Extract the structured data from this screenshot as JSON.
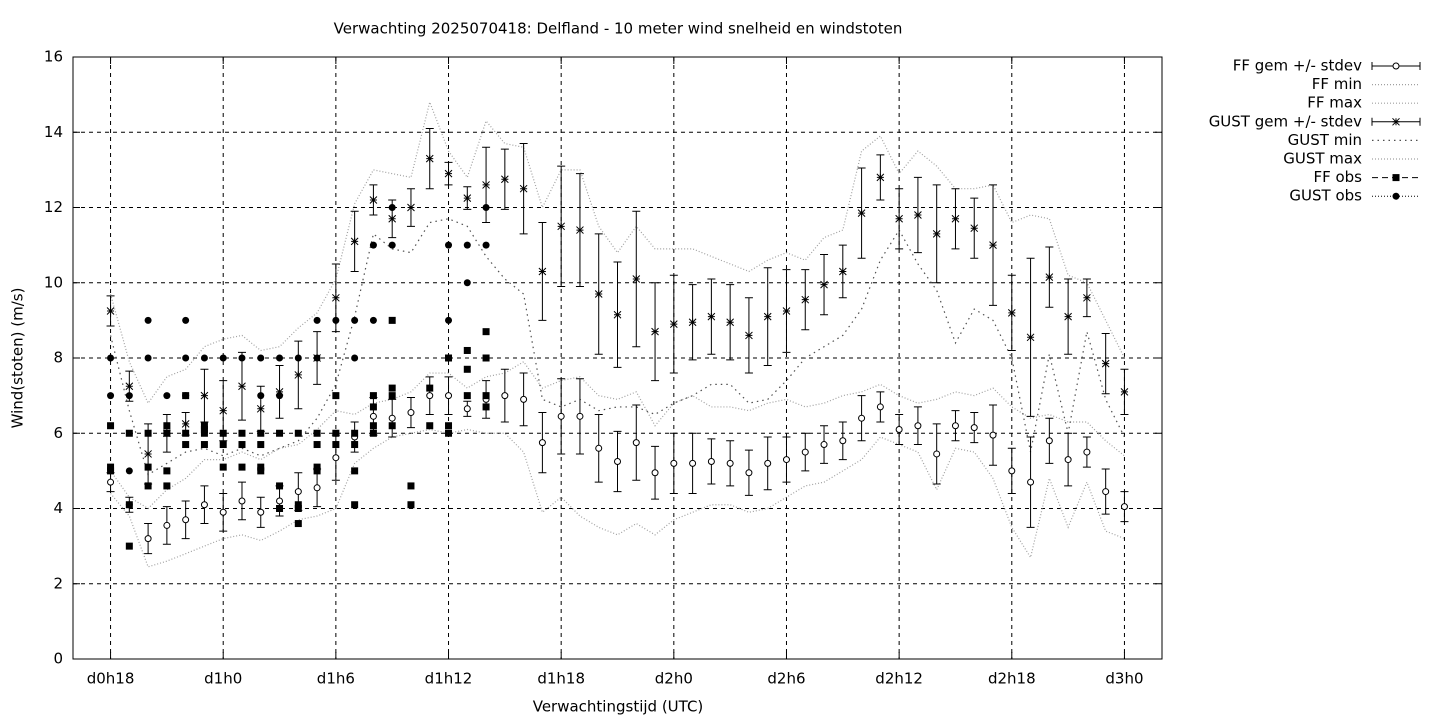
{
  "chart_data": {
    "type": "errorbar",
    "title": "Verwachting 2025070418: Delfland - 10 meter wind snelheid en windstoten",
    "xlabel": "Verwachtingstijd (UTC)",
    "ylabel": "Wind(stoten) (m/s)",
    "xlim": [
      16,
      74
    ],
    "xticks": [
      {
        "value": 18,
        "label": "d0h18"
      },
      {
        "value": 24,
        "label": "d1h0"
      },
      {
        "value": 30,
        "label": "d1h6"
      },
      {
        "value": 36,
        "label": "d1h12"
      },
      {
        "value": 42,
        "label": "d1h18"
      },
      {
        "value": 48,
        "label": "d2h0"
      },
      {
        "value": 54,
        "label": "d2h6"
      },
      {
        "value": 60,
        "label": "d2h12"
      },
      {
        "value": 66,
        "label": "d2h18"
      },
      {
        "value": 72,
        "label": "d3h0"
      }
    ],
    "ylim": [
      0,
      16
    ],
    "yticks": [
      0,
      2,
      4,
      6,
      8,
      10,
      12,
      14,
      16
    ],
    "grid": true,
    "legend": "outside-right",
    "x": [
      18,
      19,
      20,
      21,
      22,
      23,
      24,
      25,
      26,
      27,
      28,
      29,
      30,
      31,
      32,
      33,
      34,
      35,
      36,
      37,
      38,
      39,
      40,
      41,
      42,
      43,
      44,
      45,
      46,
      47,
      48,
      49,
      50,
      51,
      52,
      53,
      54,
      55,
      56,
      57,
      58,
      59,
      60,
      61,
      62,
      63,
      64,
      65,
      66,
      67,
      68,
      69,
      70,
      71,
      72
    ],
    "series": [
      {
        "name": "FF gem +/- stdev",
        "style": "errorbars",
        "marker": "open-circle",
        "color": "#000000",
        "values": [
          4.7,
          4.1,
          3.2,
          3.55,
          3.7,
          4.1,
          3.9,
          4.2,
          3.9,
          4.2,
          4.45,
          4.55,
          5.35,
          5.9,
          6.45,
          6.4,
          6.55,
          7.0,
          7.0,
          6.65,
          6.9,
          7.0,
          6.9,
          5.75,
          6.45,
          6.45,
          5.6,
          5.25,
          5.75,
          4.95,
          5.2,
          5.2,
          5.25,
          5.2,
          4.95,
          5.2,
          5.3,
          5.5,
          5.7,
          5.8,
          6.4,
          6.7,
          6.1,
          6.2,
          5.45,
          6.2,
          6.15,
          5.95,
          5.0,
          4.7,
          5.8,
          5.3,
          5.5,
          4.45,
          4.05
        ],
        "errors": [
          0.25,
          0.2,
          0.4,
          0.5,
          0.5,
          0.5,
          0.5,
          0.5,
          0.4,
          0.4,
          0.5,
          0.5,
          0.6,
          0.4,
          0.5,
          0.5,
          0.4,
          0.5,
          0.5,
          0.2,
          0.5,
          0.7,
          0.7,
          0.8,
          1.0,
          1.0,
          0.9,
          0.8,
          1.0,
          0.7,
          0.8,
          0.8,
          0.6,
          0.6,
          0.6,
          0.7,
          0.6,
          0.5,
          0.5,
          0.5,
          0.6,
          0.4,
          0.4,
          0.5,
          0.8,
          0.4,
          0.4,
          0.8,
          0.6,
          1.2,
          0.6,
          0.7,
          0.4,
          0.6,
          0.4
        ]
      },
      {
        "name": "FF min",
        "style": "line",
        "color": "#a0a0a0",
        "dash": "1 2",
        "values": [
          4.4,
          3.8,
          2.45,
          2.6,
          2.8,
          3.0,
          3.2,
          3.3,
          3.15,
          3.4,
          3.7,
          3.8,
          4.0,
          5.2,
          5.6,
          5.9,
          6.0,
          6.1,
          6.0,
          6.1,
          6.0,
          6.0,
          5.5,
          3.9,
          4.3,
          3.8,
          3.5,
          3.3,
          3.6,
          3.3,
          3.7,
          3.9,
          4.1,
          4.1,
          3.9,
          4.0,
          4.3,
          4.6,
          4.7,
          5.0,
          5.3,
          5.9,
          5.7,
          5.5,
          4.5,
          5.6,
          5.5,
          4.8,
          3.5,
          2.7,
          4.8,
          3.5,
          4.7,
          3.4,
          3.2
        ]
      },
      {
        "name": "FF max",
        "style": "line",
        "color": "#a0a0a0",
        "dash": "1 2",
        "values": [
          5.0,
          4.3,
          4.0,
          4.5,
          4.8,
          5.3,
          5.3,
          5.5,
          5.3,
          5.6,
          5.7,
          6.1,
          6.6,
          6.5,
          6.8,
          6.9,
          7.1,
          7.6,
          7.6,
          7.2,
          7.5,
          7.6,
          7.9,
          7.2,
          7.4,
          7.5,
          7.0,
          6.9,
          7.1,
          6.2,
          6.8,
          7.0,
          6.7,
          6.7,
          6.6,
          6.8,
          6.9,
          6.7,
          6.8,
          7.0,
          7.1,
          7.3,
          7.0,
          6.8,
          6.9,
          7.1,
          7.0,
          7.2,
          6.7,
          6.4,
          6.5,
          6.3,
          6.3,
          5.8,
          5.4
        ]
      },
      {
        "name": "GUST gem +/- stdev",
        "style": "errorbars",
        "marker": "star",
        "color": "#000000",
        "values": [
          9.25,
          7.25,
          5.45,
          6.0,
          6.25,
          7.0,
          6.6,
          7.25,
          6.65,
          7.1,
          7.55,
          8.0,
          9.6,
          11.1,
          12.2,
          11.7,
          12.0,
          13.3,
          12.9,
          12.25,
          12.6,
          12.75,
          12.5,
          10.3,
          11.5,
          11.4,
          9.7,
          9.15,
          10.1,
          8.7,
          8.9,
          8.95,
          9.1,
          8.95,
          8.6,
          9.1,
          9.25,
          9.55,
          9.95,
          10.3,
          11.85,
          12.8,
          11.7,
          11.8,
          11.3,
          11.7,
          11.45,
          11.0,
          9.2,
          8.55,
          10.15,
          9.1,
          9.6,
          7.85,
          7.1
        ],
        "errors": [
          0.4,
          0.4,
          0.8,
          0.5,
          0.3,
          0.7,
          0.8,
          0.9,
          0.6,
          0.7,
          0.9,
          0.7,
          0.9,
          0.8,
          0.4,
          0.5,
          0.5,
          0.8,
          0.3,
          0.3,
          1.0,
          0.8,
          1.2,
          1.3,
          1.6,
          1.5,
          1.6,
          1.4,
          1.8,
          1.3,
          1.3,
          1.0,
          1.0,
          1.0,
          1.0,
          1.3,
          1.1,
          0.8,
          0.8,
          0.7,
          1.2,
          0.6,
          0.8,
          1.0,
          1.3,
          0.8,
          0.8,
          1.6,
          1.0,
          2.1,
          0.8,
          1.0,
          0.5,
          0.8,
          0.6
        ]
      },
      {
        "name": "GUST min",
        "style": "line",
        "color": "#505050",
        "dash": "1.5 4",
        "values": [
          8.6,
          6.6,
          4.9,
          5.2,
          5.5,
          5.6,
          5.4,
          5.6,
          5.4,
          5.6,
          5.8,
          6.4,
          7.3,
          9.1,
          11.3,
          10.9,
          10.8,
          11.6,
          11.7,
          11.5,
          10.7,
          10.1,
          9.7,
          6.9,
          6.7,
          6.9,
          6.6,
          6.7,
          6.7,
          6.5,
          6.8,
          7.0,
          7.3,
          7.3,
          6.8,
          6.9,
          7.4,
          8.0,
          8.3,
          8.6,
          9.3,
          10.6,
          11.4,
          10.5,
          9.8,
          8.4,
          9.3,
          9.0,
          8.0,
          5.5,
          8.1,
          6.0,
          8.7,
          6.9,
          5.9
        ]
      },
      {
        "name": "GUST max",
        "style": "line",
        "color": "#a0a0a0",
        "dash": "1 2",
        "values": [
          9.7,
          7.9,
          6.8,
          7.5,
          7.7,
          8.3,
          8.5,
          8.6,
          8.2,
          8.3,
          8.8,
          9.2,
          10.1,
          12.1,
          13.0,
          12.9,
          12.8,
          14.8,
          13.5,
          12.8,
          14.3,
          13.7,
          13.6,
          12.0,
          13.0,
          13.0,
          11.5,
          10.8,
          11.5,
          10.9,
          10.9,
          10.9,
          10.7,
          10.5,
          10.3,
          10.6,
          10.8,
          10.6,
          11.2,
          11.4,
          13.5,
          13.9,
          12.9,
          13.5,
          13.1,
          12.5,
          12.5,
          12.6,
          11.6,
          11.8,
          11.7,
          10.2,
          10.0,
          9.0,
          8.0
        ]
      },
      {
        "name": "FF obs",
        "style": "points",
        "marker": "square",
        "color": "#000000",
        "dash": "6 4",
        "x": [
          18,
          18,
          18,
          19,
          19,
          19,
          20,
          20,
          20,
          21,
          21,
          21,
          21,
          22,
          22,
          22,
          23,
          23,
          23,
          23,
          24,
          24,
          24,
          25,
          25,
          25,
          26,
          26,
          26,
          26,
          27,
          27,
          27,
          28,
          28,
          28,
          28,
          29,
          29,
          29,
          29,
          30,
          30,
          30,
          31,
          31,
          31,
          31,
          32,
          32,
          32,
          32,
          33,
          33,
          33,
          33,
          34,
          34,
          35,
          35,
          36,
          36,
          36,
          37,
          37,
          37,
          38,
          38,
          38,
          38
        ],
        "values": [
          6.2,
          5.1,
          5.0,
          6.0,
          4.1,
          3.0,
          6.0,
          5.1,
          4.6,
          6.2,
          6.0,
          5.0,
          4.6,
          7.0,
          6.0,
          5.7,
          6.2,
          6.0,
          6.1,
          5.7,
          6.0,
          5.7,
          5.1,
          6.0,
          5.7,
          5.1,
          6.0,
          5.7,
          5.1,
          5.0,
          6.0,
          4.6,
          4.0,
          6.0,
          4.1,
          4.0,
          3.6,
          6.0,
          5.7,
          5.1,
          5.0,
          7.0,
          6.0,
          5.7,
          6.0,
          5.7,
          5.0,
          4.1,
          7.0,
          6.7,
          6.2,
          6.0,
          9.0,
          7.2,
          7.0,
          6.2,
          4.6,
          4.1,
          7.2,
          6.2,
          8.0,
          6.2,
          6.0,
          8.2,
          7.7,
          7.0,
          8.7,
          8.0,
          7.0,
          6.7
        ]
      },
      {
        "name": "GUST obs",
        "style": "points",
        "marker": "dot",
        "color": "#000000",
        "dash": "1 2",
        "x": [
          18,
          18,
          19,
          19,
          20,
          20,
          21,
          22,
          22,
          22,
          23,
          24,
          25,
          26,
          26,
          27,
          27,
          28,
          29,
          29,
          30,
          31,
          31,
          32,
          32,
          33,
          33,
          36,
          36,
          37,
          37,
          38,
          38
        ],
        "values": [
          8,
          7,
          7,
          5,
          9,
          8,
          7,
          9,
          8,
          7,
          8,
          8,
          8,
          8,
          7,
          8,
          7,
          8,
          9,
          8,
          9,
          9,
          8,
          11,
          9,
          12,
          11,
          11,
          9,
          11,
          10,
          12,
          11
        ]
      }
    ]
  }
}
